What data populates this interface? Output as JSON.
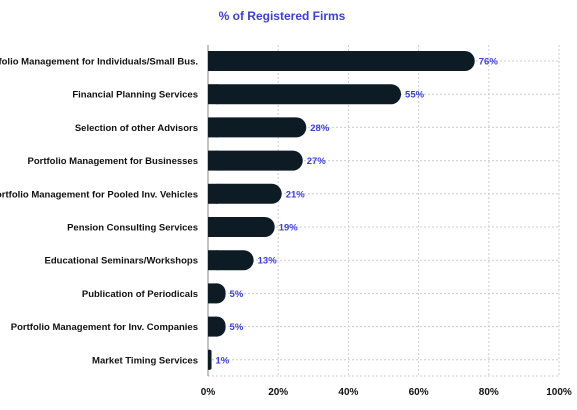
{
  "chart_data": {
    "type": "bar",
    "orientation": "horizontal",
    "title": "% of Registered Firms",
    "categories": [
      "Portfolio Management for Individuals/Small Bus.",
      "Financial Planning Services",
      "Selection of other Advisors",
      "Portfolio Management for Businesses",
      "Portfolio Management for Pooled Inv. Vehicles",
      "Pension Consulting Services",
      "Educational Seminars/Workshops",
      "Publication of Periodicals",
      "Portfolio Management for Inv. Companies",
      "Market Timing Services"
    ],
    "values": [
      76,
      55,
      28,
      27,
      21,
      19,
      13,
      5,
      5,
      1
    ],
    "data_labels": [
      "76%",
      "55%",
      "28%",
      "27%",
      "21%",
      "19%",
      "13%",
      "5%",
      "5%",
      "1%"
    ],
    "xlim": [
      0,
      100
    ],
    "x_ticks": [
      0,
      20,
      40,
      60,
      80,
      100
    ],
    "x_tick_labels": [
      "0%",
      "20%",
      "40%",
      "60%",
      "80%",
      "100%"
    ],
    "grid": "dotted vertical and horizontal",
    "colors": {
      "bar": "#0d1b24",
      "accent": "#3b3fd8",
      "label": "#111111",
      "grid": "#cccccc",
      "axis": "#888888"
    }
  }
}
